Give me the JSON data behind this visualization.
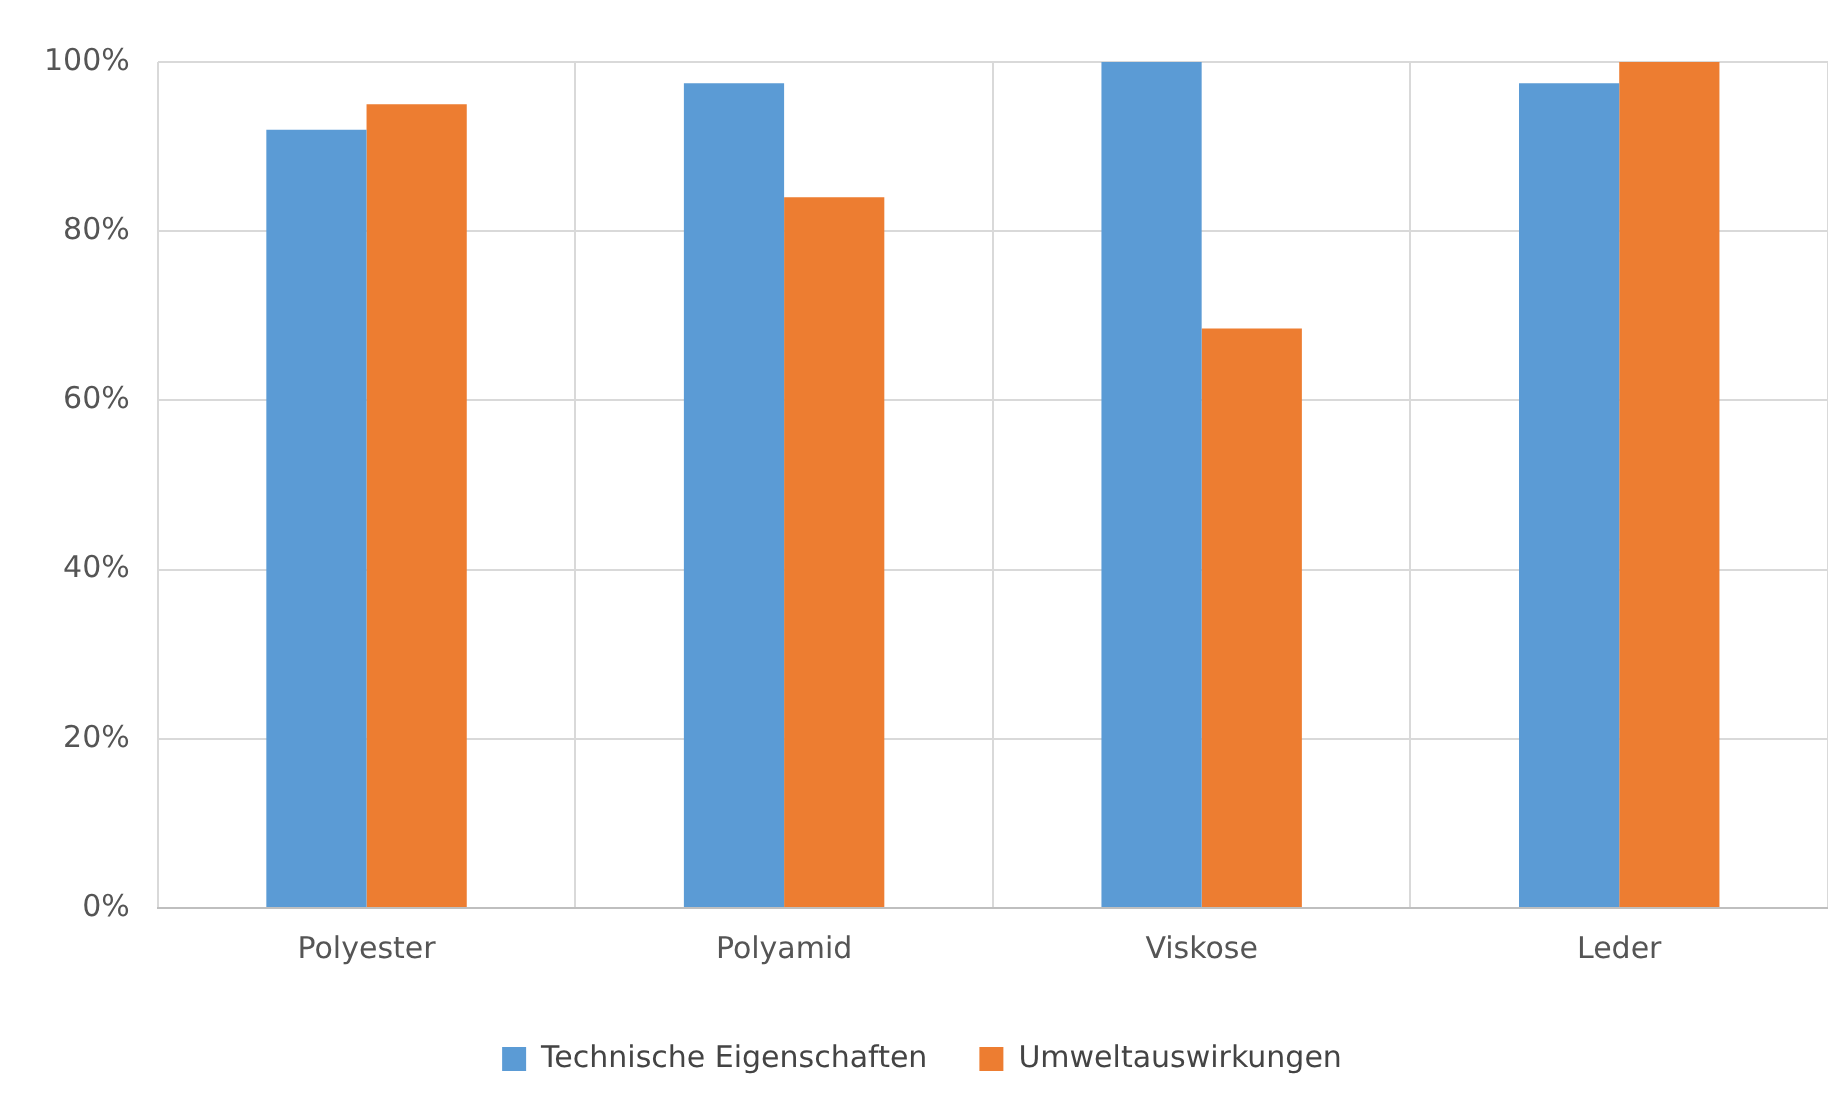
{
  "chart_data": {
    "type": "bar",
    "categories": [
      "Polyester",
      "Polyamid",
      "Viskose",
      "Leder"
    ],
    "series": [
      {
        "name": "Technische Eigenschaften",
        "color": "#5b9bd5",
        "values": [
          92,
          97.5,
          100,
          97.5
        ]
      },
      {
        "name": "Umweltauswirkungen",
        "color": "#ed7d31",
        "values": [
          95,
          84,
          68.5,
          100
        ]
      }
    ],
    "ylim": [
      0,
      100
    ],
    "yticks": [
      {
        "value": 0,
        "label": "0%"
      },
      {
        "value": 20,
        "label": "20%"
      },
      {
        "value": 40,
        "label": "40%"
      },
      {
        "value": 60,
        "label": "60%"
      },
      {
        "value": 80,
        "label": "80%"
      },
      {
        "value": 100,
        "label": "100%"
      }
    ],
    "grid": true,
    "legend": "bottom"
  }
}
